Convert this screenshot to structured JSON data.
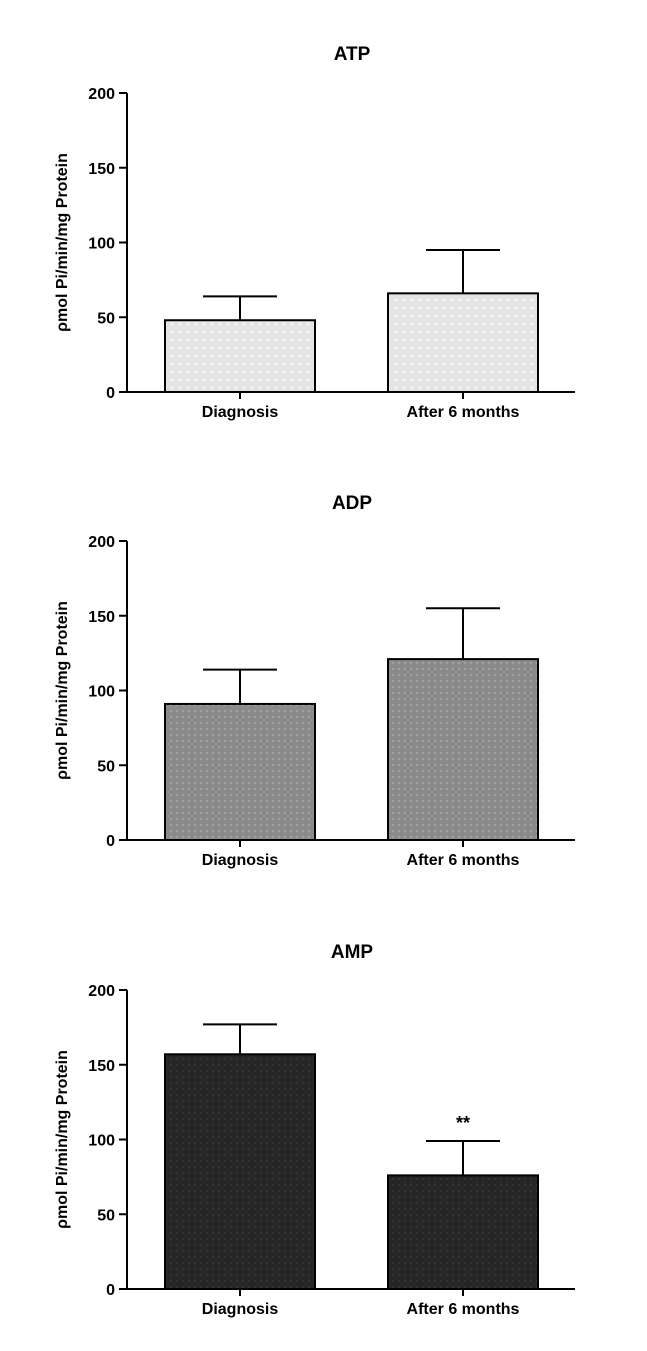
{
  "chart_data": [
    {
      "type": "bar",
      "title": "ATP",
      "ylabel": "ρmol Pi/min/mg Protein",
      "xlabel": "",
      "categories": [
        "Diagnosis",
        "After 6 months"
      ],
      "values": [
        48,
        66
      ],
      "errors": [
        16,
        29
      ],
      "annotations": [
        "",
        ""
      ],
      "ylim": [
        0,
        200
      ],
      "yticks": [
        "0",
        "50",
        "100",
        "150",
        "200"
      ],
      "bar_color": "#e4e4e4",
      "grid": false
    },
    {
      "type": "bar",
      "title": "ADP",
      "ylabel": "ρmol Pi/min/mg Protein",
      "xlabel": "",
      "categories": [
        "Diagnosis",
        "After 6 months"
      ],
      "values": [
        91,
        121
      ],
      "errors": [
        23,
        34
      ],
      "annotations": [
        "",
        ""
      ],
      "ylim": [
        0,
        200
      ],
      "yticks": [
        "0",
        "50",
        "100",
        "150",
        "200"
      ],
      "bar_color": "#8a8a8a",
      "grid": false
    },
    {
      "type": "bar",
      "title": "AMP",
      "ylabel": "ρmol Pi/min/mg Protein",
      "xlabel": "",
      "categories": [
        "Diagnosis",
        "After 6 months"
      ],
      "values": [
        157,
        76
      ],
      "errors": [
        20,
        23
      ],
      "annotations": [
        "",
        "**"
      ],
      "ylim": [
        0,
        200
      ],
      "yticks": [
        "0",
        "50",
        "100",
        "150",
        "200"
      ],
      "bar_color": "#262626",
      "grid": false
    }
  ]
}
